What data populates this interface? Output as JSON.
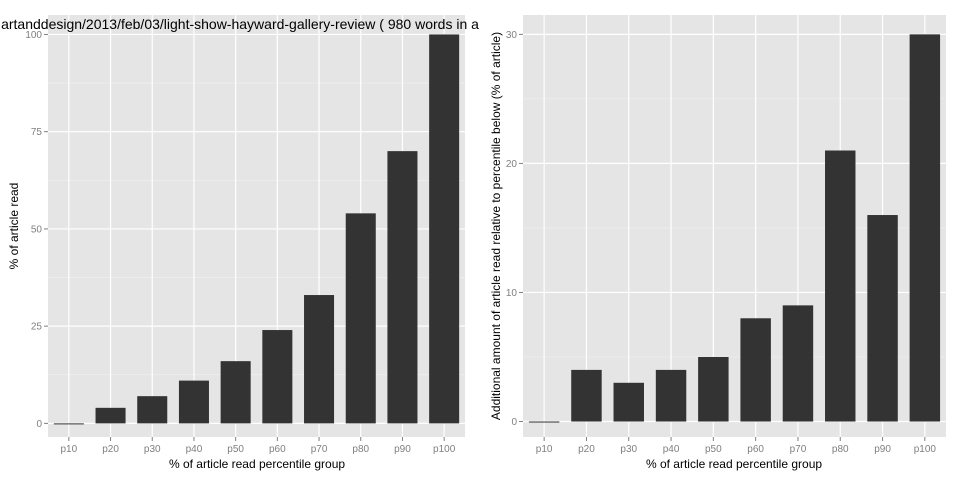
{
  "chart_data": [
    {
      "type": "bar",
      "title": "artanddesign/2013/feb/03/light-show-hayward-gallery-review ( 980 words in a",
      "xlabel": "% of article read percentile group",
      "ylabel": "% of article read",
      "categories": [
        "p10",
        "p20",
        "p30",
        "p40",
        "p50",
        "p60",
        "p70",
        "p80",
        "p90",
        "p100"
      ],
      "values": [
        0,
        4,
        7,
        11,
        16,
        24,
        33,
        54,
        70,
        100
      ],
      "ylim": [
        -3.5,
        105
      ],
      "yticks": [
        0,
        25,
        50,
        75,
        100
      ],
      "grid": true,
      "colors": {
        "bar": "#333333",
        "panel": "#e5e5e5",
        "gridMajor": "#ffffff",
        "gridMinor": "#f2f2f2"
      }
    },
    {
      "type": "bar",
      "title": "",
      "xlabel": "% of article read percentile group",
      "ylabel": "Additional amount of article read relative to percentile below (% of article)",
      "categories": [
        "p10",
        "p20",
        "p30",
        "p40",
        "p50",
        "p60",
        "p70",
        "p80",
        "p90",
        "p100"
      ],
      "values": [
        0,
        4,
        3,
        4,
        5,
        8,
        9,
        21,
        16,
        30
      ],
      "ylim": [
        -1.2,
        31.5
      ],
      "yticks": [
        0,
        10,
        20,
        30
      ],
      "grid": true,
      "colors": {
        "bar": "#333333",
        "panel": "#e5e5e5",
        "gridMajor": "#ffffff",
        "gridMinor": "#f2f2f2"
      }
    }
  ]
}
